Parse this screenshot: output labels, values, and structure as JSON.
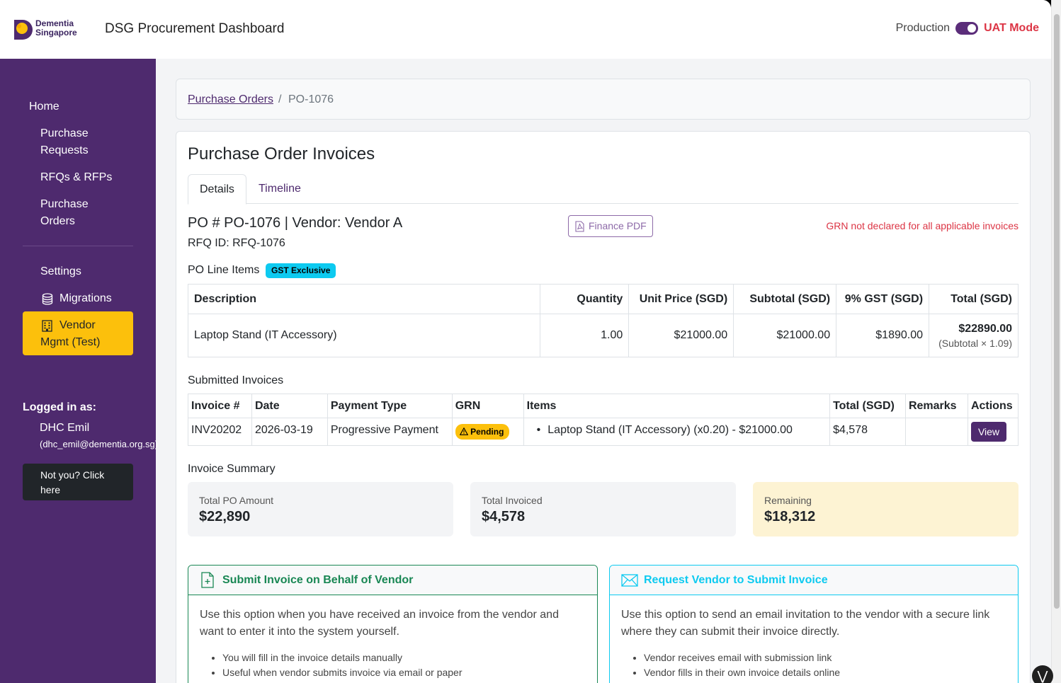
{
  "header": {
    "logo_line1": "Dementia",
    "logo_line2": "Singapore",
    "title": "DSG Procurement Dashboard",
    "mode_off_label": "Production",
    "mode_on_label": "UAT Mode"
  },
  "sidebar": {
    "home": "Home",
    "purchase_requests_1": "Purchase",
    "purchase_requests_2": "Requests",
    "rfqs": "RFQs & RFPs",
    "purchase_orders_1": "Purchase",
    "purchase_orders_2": "Orders",
    "settings": "Settings",
    "migrations": "Migrations",
    "vendor_1": "Vendor",
    "vendor_2": "Mgmt (Test)",
    "logged_label": "Logged in as:",
    "user_name": "DHC Emil",
    "user_email": "(dhc_emil@dementia.org.sg)",
    "not_you_1": "Not you? Click",
    "not_you_2": "here"
  },
  "breadcrumb": {
    "parent": "Purchase Orders",
    "separator": "/",
    "current": "PO-1076"
  },
  "page": {
    "title": "Purchase Order Invoices",
    "tabs": [
      "Details",
      "Timeline"
    ],
    "po_heading": "PO # PO-1076 | Vendor: Vendor A",
    "rfq_id": "RFQ ID: RFQ-1076",
    "finance_pdf": "Finance PDF",
    "grn_warning": "GRN not declared for all applicable invoices",
    "line_items_label": "PO Line Items",
    "gst_badge": "GST Exclusive"
  },
  "line_items": {
    "headers": [
      "Description",
      "Quantity",
      "Unit Price (SGD)",
      "Subtotal (SGD)",
      "9% GST (SGD)",
      "Total (SGD)"
    ],
    "rows": [
      {
        "description": "Laptop Stand (IT Accessory)",
        "quantity": "1.00",
        "unit_price": "$21000.00",
        "subtotal": "$21000.00",
        "gst": "$1890.00",
        "total": "$22890.00",
        "total_note": "(Subtotal × 1.09)"
      }
    ]
  },
  "invoices": {
    "label": "Submitted Invoices",
    "headers": [
      "Invoice #",
      "Date",
      "Payment Type",
      "GRN",
      "Items",
      "Total (SGD)",
      "Remarks",
      "Actions"
    ],
    "rows": [
      {
        "invoice": "INV20202",
        "date": "2026-03-19",
        "payment_type": "Progressive Payment",
        "grn": "Pending",
        "item": "Laptop Stand (IT Accessory) (x0.20) - $21000.00",
        "total": "$4,578",
        "remarks": "",
        "action": "View"
      }
    ]
  },
  "summary": {
    "label": "Invoice Summary",
    "total_po_label": "Total PO Amount",
    "total_po_value": "$22,890",
    "total_invoiced_label": "Total Invoiced",
    "total_invoiced_value": "$4,578",
    "remaining_label": "Remaining",
    "remaining_value": "$18,312"
  },
  "options": {
    "submit": {
      "title": "Submit Invoice on Behalf of Vendor",
      "desc": "Use this option when you have received an invoice from the vendor and want to enter it into the system yourself.",
      "bullets": [
        "You will fill in the invoice details manually",
        "Useful when vendor submits invoice via email or paper"
      ]
    },
    "request": {
      "title": "Request Vendor to Submit Invoice",
      "desc": "Use this option to send an email invitation to the vendor with a secure link where they can submit their invoice directly.",
      "bullets": [
        "Vendor receives email with submission link",
        "Vendor fills in their own invoice details online"
      ]
    }
  },
  "colors": {
    "brand_purple": "#4e2a6e",
    "active_nav": "#fcc00c",
    "warning_red": "#dc3545",
    "info_cyan": "#0dcaf0",
    "success_green": "#198754",
    "remaining_bg": "#fdf3d3"
  },
  "icons": [
    "logo-mark",
    "database-icon",
    "building-icon",
    "pdf-file-icon",
    "warning-icon",
    "file-plus-icon",
    "envelope-icon"
  ]
}
